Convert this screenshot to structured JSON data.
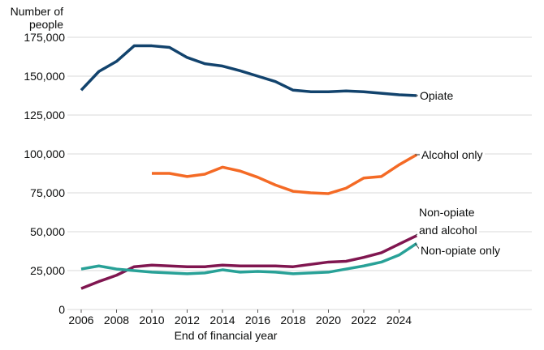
{
  "chart_data": {
    "type": "line",
    "title": "",
    "y_axis": {
      "title_lines": [
        "Number of",
        "people"
      ],
      "range": [
        0,
        175000
      ],
      "gridlines": true,
      "ticks": [
        {
          "value": 0,
          "label": "0"
        },
        {
          "value": 25000,
          "label": "25,000"
        },
        {
          "value": 50000,
          "label": "50,000"
        },
        {
          "value": 75000,
          "label": "75,000"
        },
        {
          "value": 100000,
          "label": "100,000"
        },
        {
          "value": 125000,
          "label": "125,000"
        },
        {
          "value": 150000,
          "label": "150,000"
        },
        {
          "value": 175000,
          "label": "175,000"
        }
      ]
    },
    "x_axis": {
      "title": "End of financial year",
      "tick_years": [
        2006,
        2008,
        2010,
        2012,
        2014,
        2016,
        2018,
        2020,
        2022,
        2024
      ],
      "range": [
        2006,
        2025
      ]
    },
    "legend_position": "line-end-labels-right",
    "series": [
      {
        "name": "Opiate",
        "label_lines": [
          "Opiate"
        ],
        "color": "#12436D",
        "years": [
          2006,
          2007,
          2008,
          2009,
          2010,
          2011,
          2012,
          2013,
          2014,
          2015,
          2016,
          2017,
          2018,
          2019,
          2020,
          2021,
          2022,
          2023,
          2024,
          2025
        ],
        "values": [
          141000,
          153000,
          159500,
          169500,
          169500,
          168500,
          162000,
          158000,
          156500,
          153500,
          150000,
          146500,
          141000,
          140000,
          140000,
          140500,
          140000,
          139000,
          138000,
          137500
        ]
      },
      {
        "name": "Alcohol only",
        "label_lines": [
          "Alcohol only"
        ],
        "color": "#F46A25",
        "years": [
          2010,
          2011,
          2012,
          2013,
          2014,
          2015,
          2016,
          2017,
          2018,
          2019,
          2020,
          2021,
          2022,
          2023,
          2024,
          2025
        ],
        "values": [
          87500,
          87500,
          85500,
          87000,
          91500,
          89000,
          85000,
          80000,
          76000,
          75000,
          74500,
          78000,
          84500,
          85500,
          93000,
          99500
        ]
      },
      {
        "name": "Non-opiate and alcohol",
        "label_lines": [
          "Non-opiate",
          "and alcohol"
        ],
        "color": "#801650",
        "years": [
          2006,
          2007,
          2008,
          2009,
          2010,
          2011,
          2012,
          2013,
          2014,
          2015,
          2016,
          2017,
          2018,
          2019,
          2020,
          2021,
          2022,
          2023,
          2024,
          2025
        ],
        "values": [
          13500,
          18000,
          22000,
          27500,
          28500,
          28000,
          27500,
          27500,
          28500,
          28000,
          28000,
          28000,
          27500,
          29000,
          30500,
          31000,
          33500,
          36500,
          42000,
          47500
        ]
      },
      {
        "name": "Non-opiate only",
        "label_lines": [
          "Non-opiate only"
        ],
        "color": "#28A197",
        "years": [
          2006,
          2007,
          2008,
          2009,
          2010,
          2011,
          2012,
          2013,
          2014,
          2015,
          2016,
          2017,
          2018,
          2019,
          2020,
          2021,
          2022,
          2023,
          2024,
          2025
        ],
        "values": [
          26000,
          28000,
          26000,
          25000,
          24000,
          23500,
          23000,
          23500,
          25500,
          24000,
          24500,
          24000,
          23000,
          23500,
          24000,
          26000,
          28000,
          30500,
          35000,
          42500
        ]
      }
    ],
    "colors": {
      "gridline": "#D9D9D9",
      "tick_mark": "#595959",
      "text": "#0B0C0C",
      "connector": "#404040"
    }
  }
}
